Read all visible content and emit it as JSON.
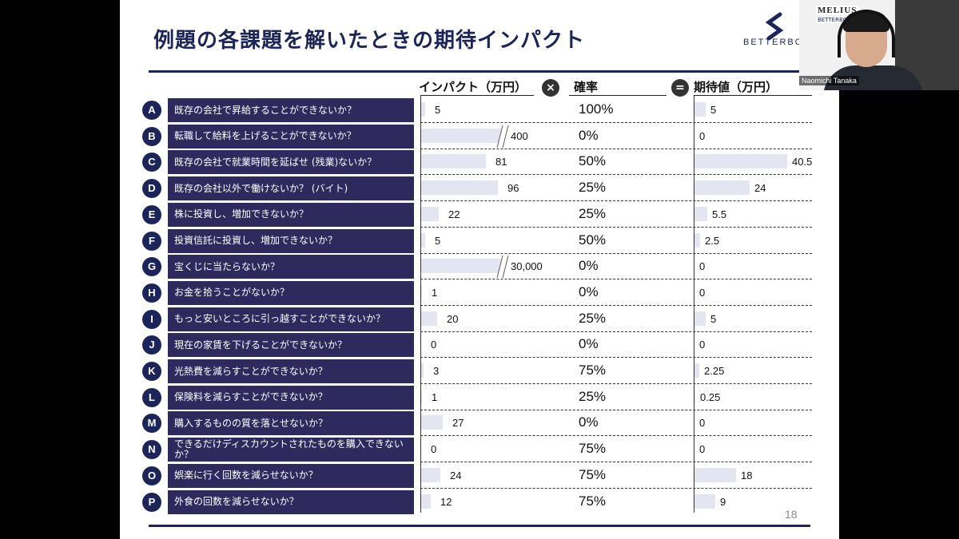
{
  "slide": {
    "title": "例題の各課題を解いたときの期待インパクト",
    "logo_text": "BETTERBO",
    "page_number": "18",
    "headers": {
      "impact": "インパクト（万円）",
      "multiply_op": "×",
      "probability": "確率",
      "equals_op": "=",
      "expected": "期待値（万円）"
    },
    "rows": [
      {
        "letter": "A",
        "question": "既存の会社で昇給することができないか？",
        "impact": "5",
        "probability": "100%",
        "expected": "5"
      },
      {
        "letter": "B",
        "question": "転職して給料を上げることができないか？",
        "impact": "400",
        "probability": "0%",
        "expected": "0"
      },
      {
        "letter": "C",
        "question": "既存の会社で就業時間を延ばせ (残業)ないか？",
        "impact": "81",
        "probability": "50%",
        "expected": "40.5"
      },
      {
        "letter": "D",
        "question": "既存の会社以外で働けないか？ (バイト)",
        "impact": "96",
        "probability": "25%",
        "expected": "24"
      },
      {
        "letter": "E",
        "question": "株に投資し、増加できないか？",
        "impact": "22",
        "probability": "25%",
        "expected": "5.5"
      },
      {
        "letter": "F",
        "question": "投資信託に投資し、増加できないか？",
        "impact": "5",
        "probability": "50%",
        "expected": "2.5"
      },
      {
        "letter": "G",
        "question": "宝くじに当たらないか？",
        "impact": "30,000",
        "probability": "0%",
        "expected": "0"
      },
      {
        "letter": "H",
        "question": "お金を拾うことがないか？",
        "impact": "1",
        "probability": "0%",
        "expected": "0"
      },
      {
        "letter": "I",
        "question": "もっと安いところに引っ越すことができないか？",
        "impact": "20",
        "probability": "25%",
        "expected": "5"
      },
      {
        "letter": "J",
        "question": "現在の家賃を下げることができないか？",
        "impact": "0",
        "probability": "0%",
        "expected": "0"
      },
      {
        "letter": "K",
        "question": "光熱費を減らすことができないか？",
        "impact": "3",
        "probability": "75%",
        "expected": "2.25"
      },
      {
        "letter": "L",
        "question": "保険料を減らすことができないか？",
        "impact": "1",
        "probability": "25%",
        "expected": "0.25"
      },
      {
        "letter": "M",
        "question": "購入するものの質を落とせないか？",
        "impact": "27",
        "probability": "0%",
        "expected": "0"
      },
      {
        "letter": "N",
        "question": "できるだけディスカウントされたものを購入できないか？",
        "impact": "0",
        "probability": "75%",
        "expected": "0"
      },
      {
        "letter": "O",
        "question": "娯楽に行く回数を減らせないか？",
        "impact": "24",
        "probability": "75%",
        "expected": "18"
      },
      {
        "letter": "P",
        "question": "外食の回数を減らせないか？",
        "impact": "12",
        "probability": "75%",
        "expected": "9"
      }
    ]
  },
  "video": {
    "brand": "MELIUS",
    "sub_brand": "BETTERBOSS",
    "participant_name": "Naomichi Tanaka"
  },
  "colors": {
    "navy": "#1b2559",
    "question_bg": "#2e2a5e",
    "bar": "#e3e6f1"
  }
}
